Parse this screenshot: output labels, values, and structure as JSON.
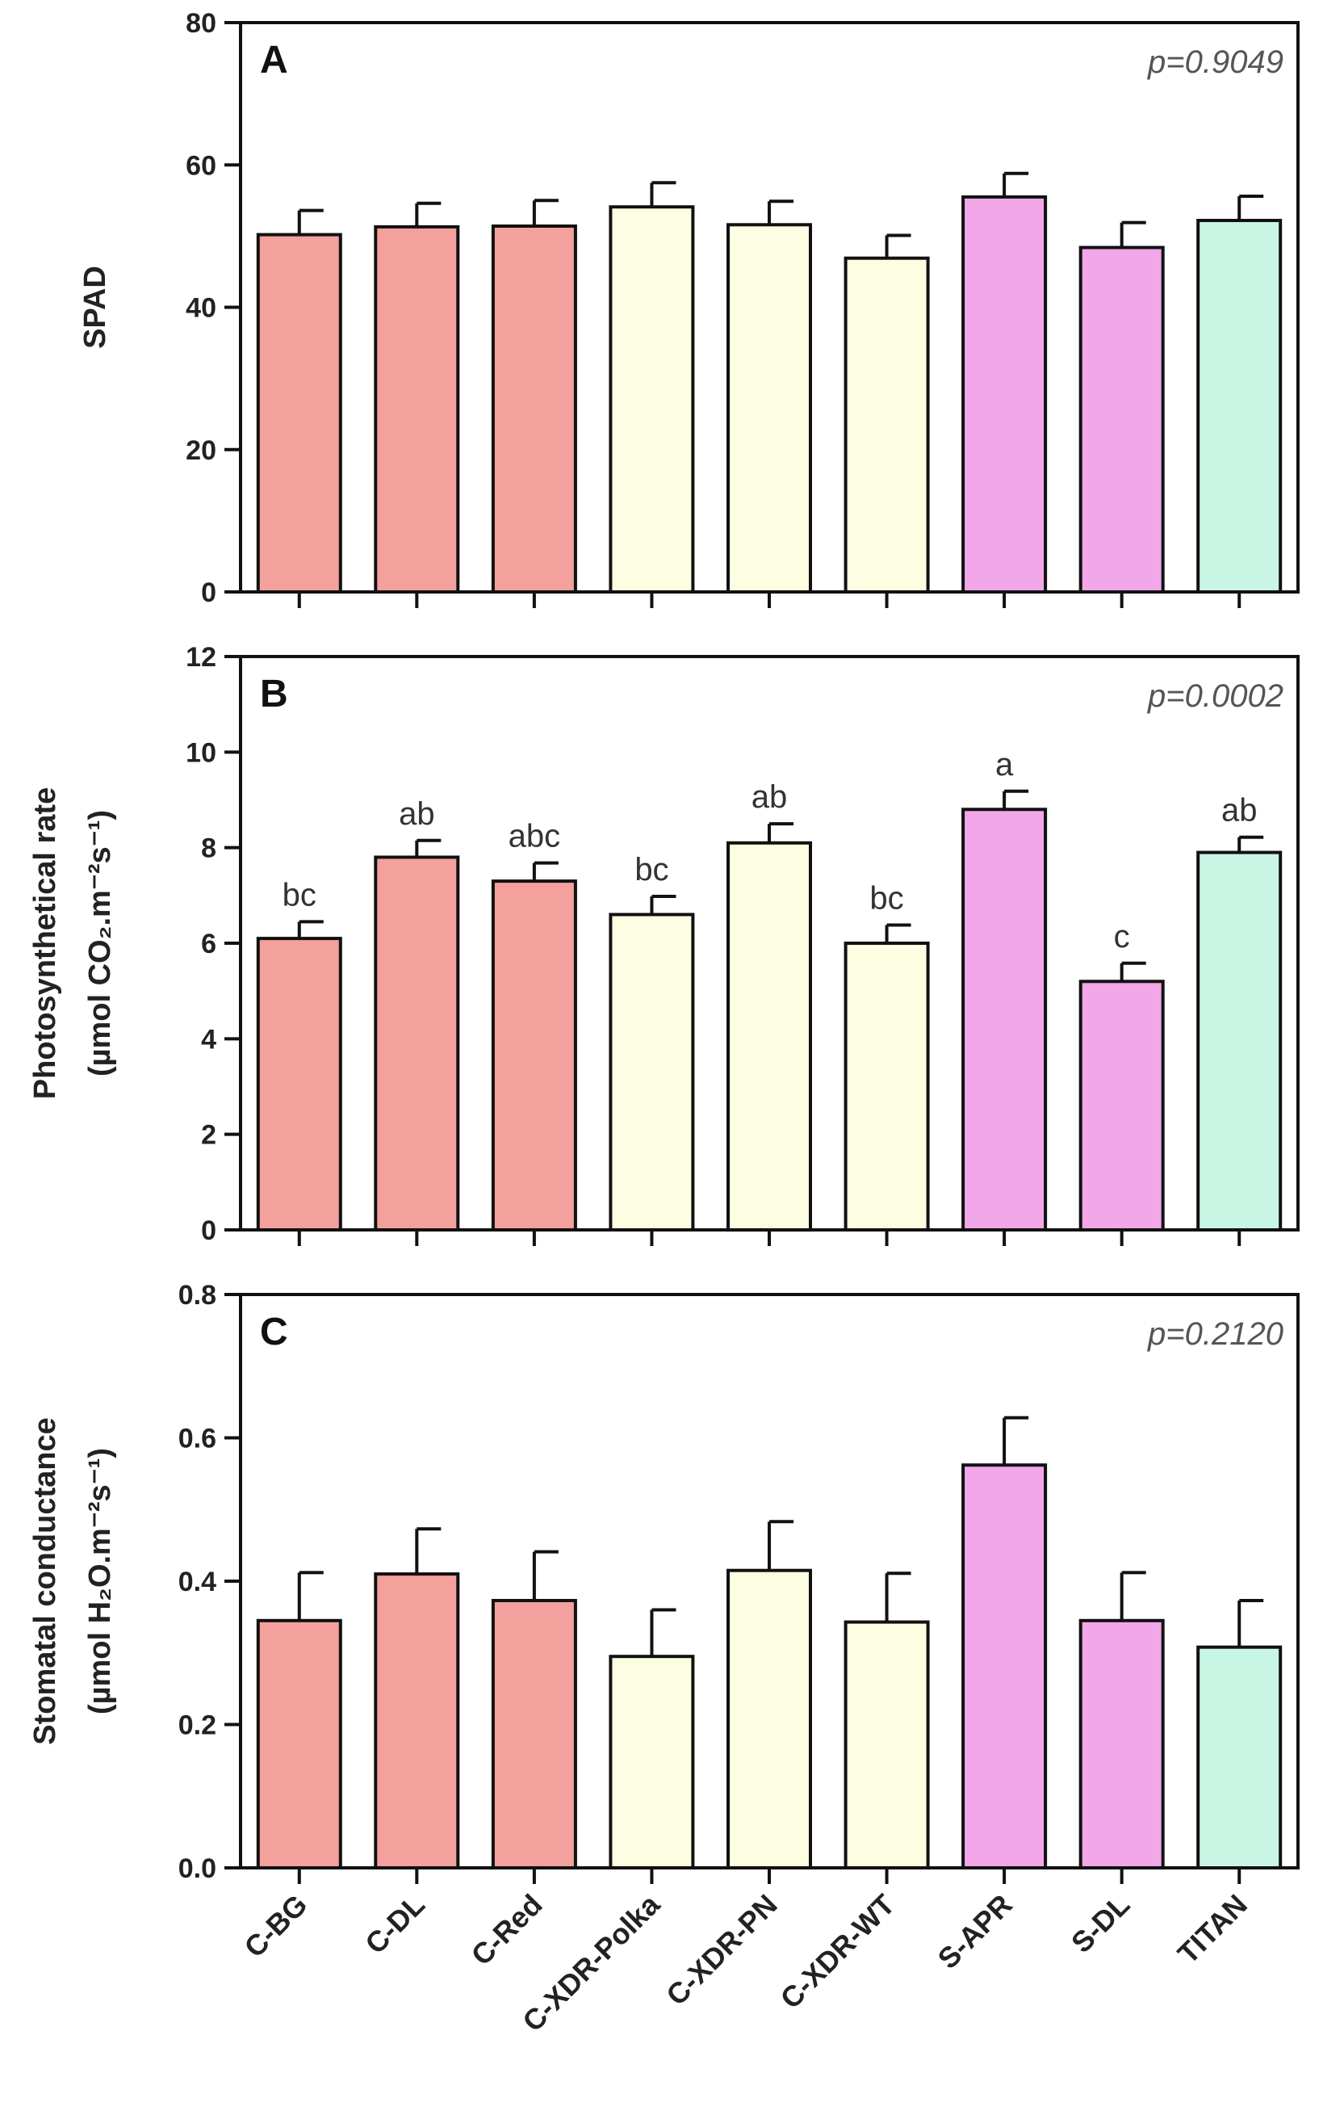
{
  "chart_data": [
    {
      "type": "bar",
      "panel": "A",
      "p_value": "p=0.9049",
      "ylabel_lines": [
        "SPAD"
      ],
      "ylim": [
        0,
        80
      ],
      "yticks": [
        "0",
        "20",
        "40",
        "60",
        "80"
      ],
      "categories": [
        "C-BG",
        "C-DL",
        "C-Red",
        "C-XDR-Polka",
        "C-XDR-PN",
        "C-XDR-WT",
        "S-APR",
        "S-DL",
        "TITAN"
      ],
      "values": [
        50.2,
        51.3,
        51.4,
        54.1,
        51.6,
        46.9,
        55.5,
        48.4,
        52.2
      ],
      "errors": [
        3.4,
        3.3,
        3.6,
        3.4,
        3.3,
        3.2,
        3.3,
        3.5,
        3.4
      ],
      "letters": [],
      "colors": [
        "#F4A09C",
        "#F4A09C",
        "#F4A09C",
        "#FDFDE1",
        "#FDFDE1",
        "#FDFDE1",
        "#F2A7E8",
        "#F2A7E8",
        "#C9F5E5"
      ]
    },
    {
      "type": "bar",
      "panel": "B",
      "p_value": "p=0.0002",
      "ylabel_lines": [
        "Photosynthetical rate",
        "(µmol CO₂.m⁻²s⁻¹)"
      ],
      "ylim": [
        0,
        12
      ],
      "yticks": [
        "0",
        "2",
        "4",
        "6",
        "8",
        "10",
        "12"
      ],
      "categories": [
        "C-BG",
        "C-DL",
        "C-Red",
        "C-XDR-Polka",
        "C-XDR-PN",
        "C-XDR-WT",
        "S-APR",
        "S-DL",
        "TITAN"
      ],
      "values": [
        6.1,
        7.8,
        7.3,
        6.6,
        8.1,
        6.0,
        8.8,
        5.2,
        7.9
      ],
      "errors": [
        0.35,
        0.35,
        0.38,
        0.38,
        0.4,
        0.38,
        0.38,
        0.38,
        0.32
      ],
      "letters": [
        "bc",
        "ab",
        "abc",
        "bc",
        "ab",
        "bc",
        "a",
        "c",
        "ab"
      ],
      "colors": [
        "#F4A09C",
        "#F4A09C",
        "#F4A09C",
        "#FDFDE1",
        "#FDFDE1",
        "#FDFDE1",
        "#F2A7E8",
        "#F2A7E8",
        "#C9F5E5"
      ]
    },
    {
      "type": "bar",
      "panel": "C",
      "p_value": "p=0.2120",
      "ylabel_lines": [
        "Stomatal conductance",
        "(µmol H₂O.m⁻²s⁻¹)"
      ],
      "ylim": [
        0,
        0.8
      ],
      "yticks": [
        "0.0",
        "0.2",
        "0.4",
        "0.6",
        "0.8"
      ],
      "categories": [
        "C-BG",
        "C-DL",
        "C-Red",
        "C-XDR-Polka",
        "C-XDR-PN",
        "C-XDR-WT",
        "S-APR",
        "S-DL",
        "TITAN"
      ],
      "values": [
        0.345,
        0.41,
        0.373,
        0.295,
        0.415,
        0.343,
        0.562,
        0.345,
        0.308
      ],
      "errors": [
        0.067,
        0.063,
        0.068,
        0.065,
        0.068,
        0.068,
        0.066,
        0.067,
        0.065
      ],
      "letters": [],
      "colors": [
        "#F4A09C",
        "#F4A09C",
        "#F4A09C",
        "#FDFDE1",
        "#FDFDE1",
        "#FDFDE1",
        "#F2A7E8",
        "#F2A7E8",
        "#C9F5E5"
      ]
    }
  ]
}
